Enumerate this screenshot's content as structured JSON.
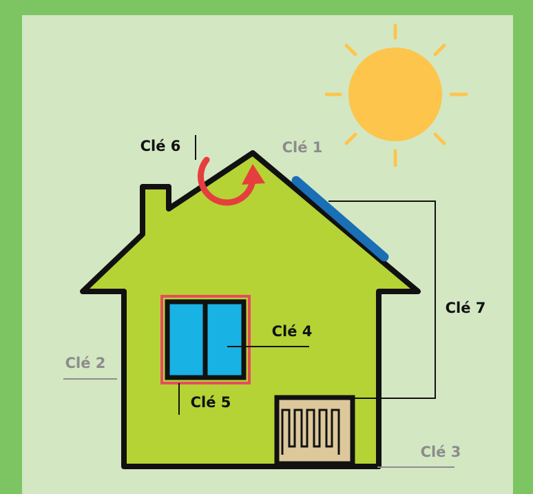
{
  "labels": [
    "Clé 6",
    "Clé 1",
    "Clé 7",
    "Clé 4",
    "Clé 5",
    "Clé 2",
    "Clé 3"
  ]
}
